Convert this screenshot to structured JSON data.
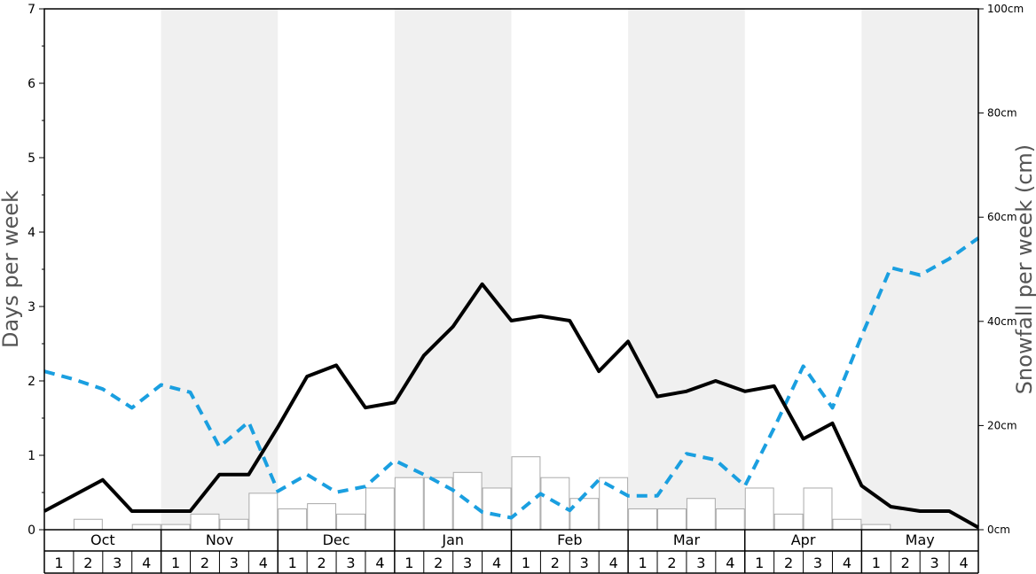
{
  "chart_data": {
    "type": "bar",
    "ylabel": "Days per week",
    "y2label": "Snowfall per week (cm)",
    "ylim": [
      0,
      7
    ],
    "y2lim": [
      0,
      100
    ],
    "yticks": [
      "0",
      "1",
      "2",
      "3",
      "4",
      "5",
      "6",
      "7"
    ],
    "y2ticks": [
      "0cm",
      "20cm",
      "40cm",
      "60cm",
      "80cm",
      "100cm"
    ],
    "months": [
      "Oct",
      "Nov",
      "Dec",
      "Jan",
      "Feb",
      "Mar",
      "Apr",
      "May"
    ],
    "weeks": [
      "1",
      "2",
      "3",
      "4"
    ],
    "shaded_months": [
      1,
      3,
      5,
      7
    ],
    "colors": {
      "shade": "#f0f0f0",
      "bar_stroke": "#aaaaaa",
      "line_solid": "#000000",
      "line_dashed": "#1a9fe0"
    },
    "series": [
      {
        "type": "bar",
        "axis": "left",
        "values": [
          0,
          0.14,
          0,
          0.07,
          0.07,
          0.21,
          0.14,
          0.49,
          0.28,
          0.35,
          0.21,
          0.56,
          0.7,
          0.7,
          0.77,
          0.56,
          0.98,
          0.7,
          0.42,
          0.7,
          0.28,
          0.28,
          0.42,
          0.28,
          0.56,
          0.21,
          0.56,
          0.14,
          0.07,
          0,
          0,
          0
        ]
      },
      {
        "type": "line",
        "style": "solid",
        "axis": "left",
        "values": [
          0.25,
          0.46,
          0.67,
          0.25,
          0.25,
          0.25,
          0.74,
          0.74,
          1.38,
          2.06,
          2.21,
          1.64,
          1.71,
          2.34,
          2.73,
          3.3,
          2.81,
          2.87,
          2.81,
          2.13,
          2.53,
          1.79,
          1.86,
          2.0,
          1.86,
          1.93,
          1.22,
          1.43,
          0.59,
          0.31,
          0.25,
          0.25,
          0.03
        ]
      },
      {
        "type": "line",
        "style": "dashed",
        "axis": "right",
        "values": [
          30.4,
          28.9,
          27.0,
          23.4,
          27.8,
          26.4,
          15.9,
          20.7,
          7.4,
          10.6,
          7.2,
          8.3,
          13.3,
          10.6,
          7.6,
          3.4,
          2.3,
          6.9,
          3.7,
          9.6,
          6.5,
          6.5,
          14.6,
          13.4,
          8.4,
          19.5,
          31.4,
          23.4,
          37.2,
          50.3,
          48.9,
          52.0,
          56.0
        ]
      }
    ]
  }
}
